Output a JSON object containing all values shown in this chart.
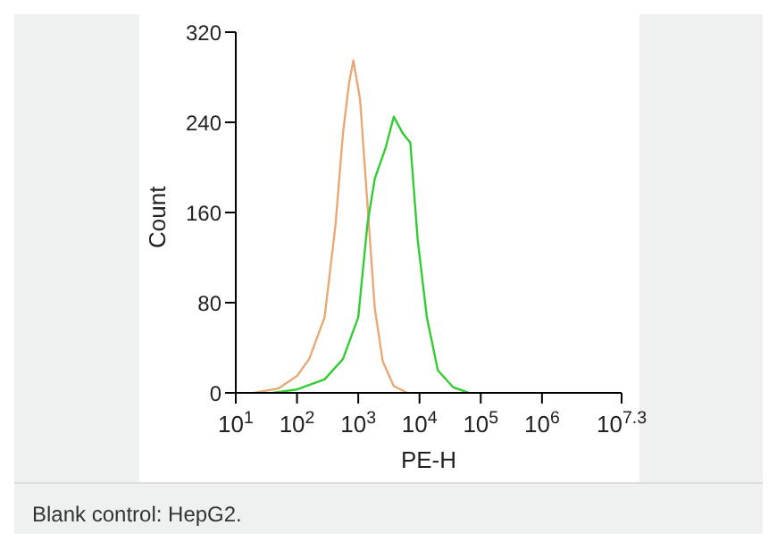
{
  "chart_data": {
    "type": "line",
    "xlabel": "PE-H",
    "ylabel": "Count",
    "log": "x",
    "xlim": [
      10,
      19952623
    ],
    "ylim": [
      0,
      320
    ],
    "xticks": [
      {
        "value": 10,
        "label": "10$^{1}$"
      },
      {
        "value": 100,
        "label": "10$^{2}$"
      },
      {
        "value": 1000,
        "label": "10$^{3}$"
      },
      {
        "value": 10000,
        "label": "10$^{4}$"
      },
      {
        "value": 100000,
        "label": "10$^{5}$"
      },
      {
        "value": 1000000,
        "label": "10$^{6}$"
      },
      {
        "value": 19952623,
        "label": "10$^{7.3}$"
      }
    ],
    "yticks": [
      0,
      80,
      160,
      240,
      320
    ],
    "marker": "none",
    "line_style": "solid",
    "series": [
      {
        "color": "#e8a878",
        "x": [
          20,
          50,
          100,
          158,
          282,
          427,
          562,
          708,
          832,
          1072,
          1413,
          1862,
          2512,
          3802,
          6310
        ],
        "values": [
          0,
          4,
          15,
          30,
          67,
          150,
          230,
          275,
          295,
          260,
          167,
          75,
          28,
          6,
          0
        ]
      },
      {
        "color": "#33cc33",
        "x": [
          40,
          100,
          282,
          562,
          1000,
          1413,
          1862,
          2818,
          3802,
          5370,
          7079,
          9333,
          13183,
          19953,
          35481,
          63096
        ],
        "values": [
          0,
          3,
          12,
          30,
          67,
          150,
          190,
          218,
          245,
          230,
          222,
          136,
          67,
          20,
          5,
          0
        ]
      }
    ],
    "annotations": [
      "Blank control: HepG2."
    ]
  }
}
